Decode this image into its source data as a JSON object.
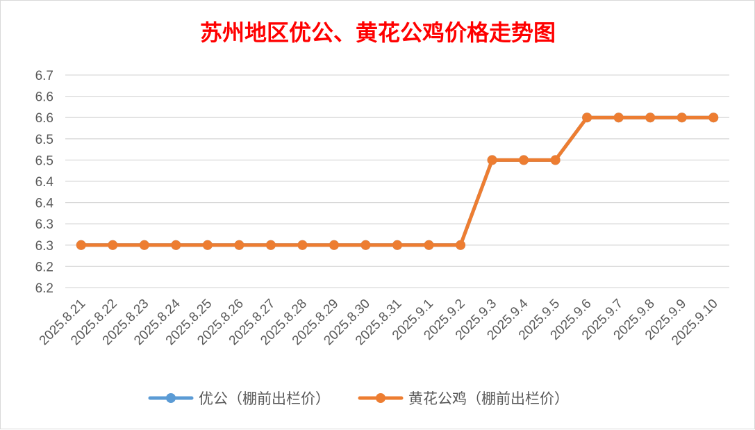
{
  "chart_data": {
    "type": "line",
    "title": "苏州地区优公、黄花公鸡价格走势图",
    "categories": [
      "2025.8.21",
      "2025.8.22",
      "2025.8.23",
      "2025.8.24",
      "2025.8.25",
      "2025.8.26",
      "2025.8.27",
      "2025.8.28",
      "2025.8.29",
      "2025.8.30",
      "2025.8.31",
      "2025.9.1",
      "2025.9.2",
      "2025.9.3",
      "2025.9.4",
      "2025.9.5",
      "2025.9.6",
      "2025.9.7",
      "2025.9.8",
      "2025.9.9",
      "2025.9.10"
    ],
    "series": [
      {
        "name": "优公（棚前出栏价）",
        "color": "#5b9bd5",
        "values": [
          6.3,
          6.3,
          6.3,
          6.3,
          6.3,
          6.3,
          6.3,
          6.3,
          6.3,
          6.3,
          6.3,
          6.3,
          6.3,
          6.5,
          6.5,
          6.5,
          6.6,
          6.6,
          6.6,
          6.6,
          6.6
        ]
      },
      {
        "name": "黄花公鸡（棚前出栏价）",
        "color": "#ed7d31",
        "values": [
          6.3,
          6.3,
          6.3,
          6.3,
          6.3,
          6.3,
          6.3,
          6.3,
          6.3,
          6.3,
          6.3,
          6.3,
          6.3,
          6.5,
          6.5,
          6.5,
          6.6,
          6.6,
          6.6,
          6.6,
          6.6
        ]
      }
    ],
    "yticks": [
      "6.2",
      "6.2",
      "6.3",
      "6.3",
      "6.4",
      "6.4",
      "6.5",
      "6.5",
      "6.6",
      "6.6",
      "6.7"
    ],
    "ylim": [
      6.2,
      6.7
    ],
    "grid": true,
    "legend": "bottom"
  }
}
